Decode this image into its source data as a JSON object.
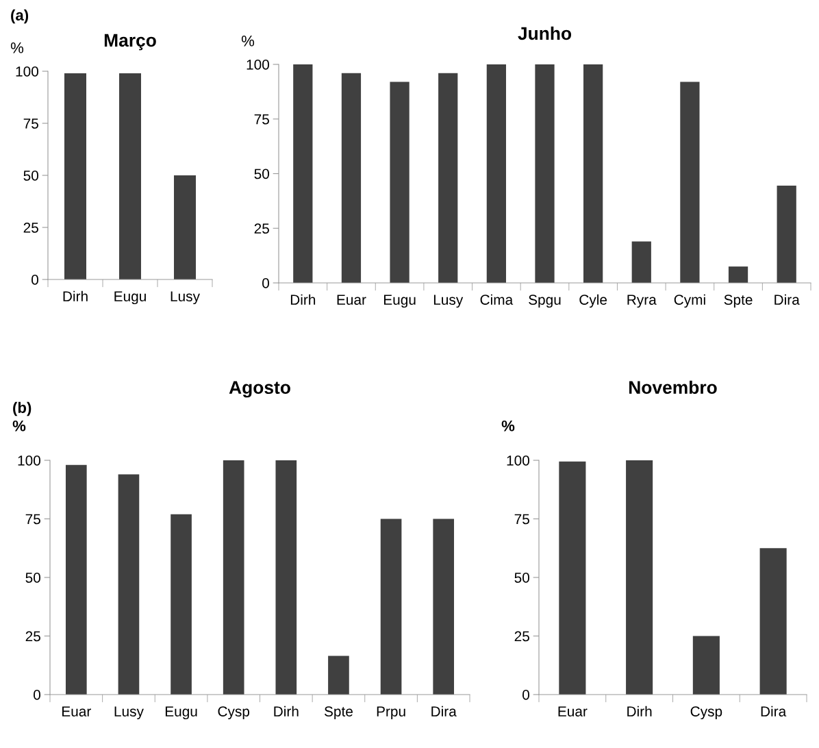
{
  "chart_data": [
    {
      "type": "bar",
      "title": "Março",
      "ylabel": "%",
      "annotations": [
        "(a)"
      ],
      "categories": [
        "Dirh",
        "Eugu",
        "Lusy"
      ],
      "values": [
        99,
        99,
        50
      ],
      "color": "#404040",
      "ylim": [
        0,
        100
      ],
      "yticks": [
        0,
        25,
        50,
        75,
        100
      ],
      "grid": false
    },
    {
      "type": "bar",
      "title": "Junho",
      "ylabel": "%",
      "categories": [
        "Dirh",
        "Euar",
        "Eugu",
        "Lusy",
        "Cima",
        "Spgu",
        "Cyle",
        "Ryra",
        "Cymi",
        "Spte",
        "Dira"
      ],
      "values": [
        100,
        96,
        92,
        96,
        100,
        100,
        100,
        19,
        92,
        7.5,
        44.5
      ],
      "color": "#404040",
      "ylim": [
        0,
        100
      ],
      "yticks": [
        0,
        25,
        50,
        75,
        100
      ],
      "grid": false
    },
    {
      "type": "bar",
      "title": "Agosto",
      "ylabel": "%",
      "annotations": [
        "(b)"
      ],
      "categories": [
        "Euar",
        "Lusy",
        "Eugu",
        "Cysp",
        "Dirh",
        "Spte",
        "Prpu",
        "Dira"
      ],
      "values": [
        98,
        94,
        77,
        100,
        100,
        16.5,
        75,
        75
      ],
      "color": "#404040",
      "ylim": [
        0,
        100
      ],
      "yticks": [
        0,
        25,
        50,
        75,
        100
      ],
      "grid": false
    },
    {
      "type": "bar",
      "title": "Novembro",
      "ylabel": "%",
      "categories": [
        "Euar",
        "Dirh",
        "Cysp",
        "Dira"
      ],
      "values": [
        99.5,
        100,
        25,
        62.5
      ],
      "color": "#404040",
      "ylim": [
        0,
        100
      ],
      "yticks": [
        0,
        25,
        50,
        75,
        100
      ],
      "grid": false
    }
  ]
}
